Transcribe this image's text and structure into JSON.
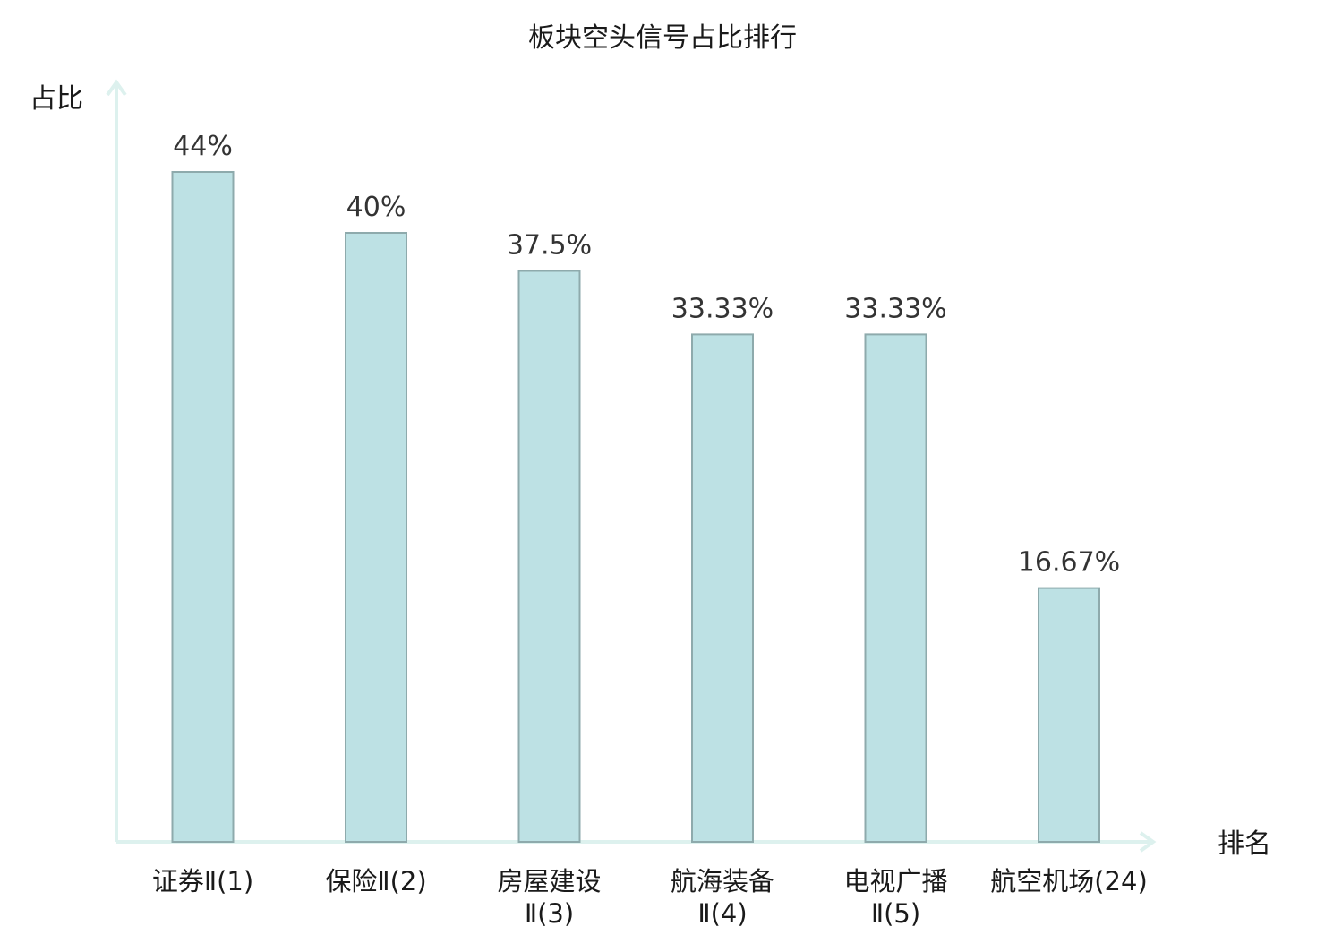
{
  "chart_data": {
    "type": "bar",
    "title": "板块空头信号占比排行",
    "ylabel": "占比",
    "xlabel": "排名",
    "ylim": [
      0,
      50
    ],
    "grid": false,
    "categories": [
      [
        "证券Ⅱ(1)"
      ],
      [
        "保险Ⅱ(2)"
      ],
      [
        "房屋建设",
        "Ⅱ(3)"
      ],
      [
        "航海装备",
        "Ⅱ(4)"
      ],
      [
        "电视广播",
        "Ⅱ(5)"
      ],
      [
        "航空机场(24)"
      ]
    ],
    "values": [
      44,
      40,
      37.5,
      33.33,
      33.33,
      16.67
    ],
    "value_labels": [
      "44%",
      "40%",
      "37.5%",
      "33.33%",
      "33.33%",
      "16.67%"
    ],
    "highlight_index": 5,
    "colors": {
      "bar_fill": "#bde1e4",
      "bar_stroke": "#8eaaac",
      "axis": "#ddf1ee",
      "highlight_text": "#e02020",
      "text": "#1a1a1a"
    }
  }
}
